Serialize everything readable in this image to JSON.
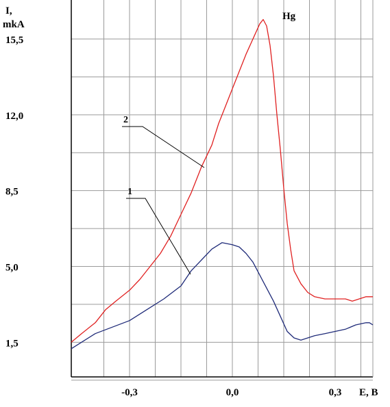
{
  "chart_data": {
    "type": "line",
    "title": "Hg",
    "ylabel_line1": "I,",
    "ylabel_line2": "mkA",
    "xlabel": "E, B",
    "xlim": [
      -0.47,
      0.41
    ],
    "ylim": [
      -0.1,
      17.3
    ],
    "grid": true,
    "ytick_labels": [
      "1,5",
      "5,0",
      "8,5",
      "12,0",
      "15,5"
    ],
    "xtick_labels": [
      "-0,3",
      "0,0",
      "0,3"
    ],
    "series": [
      {
        "name": "1",
        "color": "#1e2a78",
        "x": [
          -0.47,
          -0.44,
          -0.4,
          -0.35,
          -0.3,
          -0.25,
          -0.2,
          -0.15,
          -0.12,
          -0.09,
          -0.06,
          -0.03,
          0.0,
          0.02,
          0.04,
          0.06,
          0.08,
          0.1,
          0.12,
          0.14,
          0.16,
          0.18,
          0.2,
          0.22,
          0.24,
          0.27,
          0.3,
          0.33,
          0.36,
          0.39,
          0.4,
          0.41
        ],
        "y": [
          1.2,
          1.5,
          1.9,
          2.2,
          2.5,
          3.0,
          3.5,
          4.1,
          4.8,
          5.3,
          5.8,
          6.1,
          6.0,
          5.9,
          5.6,
          5.2,
          4.6,
          4.0,
          3.4,
          2.7,
          2.0,
          1.7,
          1.6,
          1.7,
          1.8,
          1.9,
          2.0,
          2.1,
          2.3,
          2.4,
          2.4,
          2.3
        ]
      },
      {
        "name": "2",
        "color": "#e02020",
        "x": [
          -0.47,
          -0.44,
          -0.4,
          -0.37,
          -0.34,
          -0.3,
          -0.27,
          -0.24,
          -0.21,
          -0.18,
          -0.15,
          -0.12,
          -0.09,
          -0.06,
          -0.04,
          -0.02,
          0.0,
          0.02,
          0.04,
          0.06,
          0.08,
          0.09,
          0.1,
          0.11,
          0.12,
          0.13,
          0.14,
          0.15,
          0.16,
          0.17,
          0.18,
          0.2,
          0.22,
          0.24,
          0.27,
          0.3,
          0.33,
          0.35,
          0.37,
          0.39,
          0.41
        ],
        "y": [
          1.5,
          1.9,
          2.4,
          3.0,
          3.4,
          3.9,
          4.4,
          5.0,
          5.6,
          6.4,
          7.4,
          8.4,
          9.6,
          10.6,
          11.6,
          12.4,
          13.2,
          14.0,
          14.8,
          15.5,
          16.2,
          16.4,
          16.1,
          15.2,
          13.8,
          12.0,
          10.4,
          8.6,
          7.0,
          5.8,
          4.8,
          4.2,
          3.8,
          3.6,
          3.5,
          3.5,
          3.5,
          3.4,
          3.5,
          3.6,
          3.6
        ]
      }
    ],
    "annotations": [
      {
        "text": "1",
        "series": "1"
      },
      {
        "text": "2",
        "series": "2"
      }
    ]
  }
}
